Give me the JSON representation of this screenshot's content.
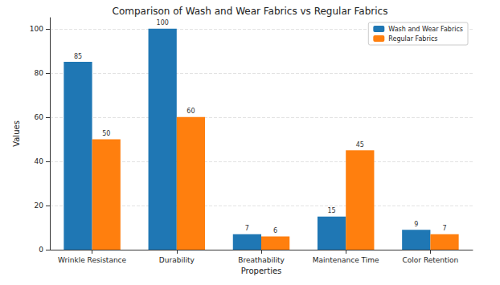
{
  "chart_data": {
    "type": "bar",
    "title": "Comparison of Wash and Wear Fabrics vs Regular Fabrics",
    "x_label": "Properties",
    "y_label": "Values",
    "categories": [
      "Wrinkle Resistance",
      "Durability",
      "Breathability",
      "Maintenance Time",
      "Color Retention"
    ],
    "series": [
      {
        "name": "Wash and Wear Fabrics",
        "color": "#1f77b4",
        "values": [
          85,
          100,
          7,
          15,
          9
        ]
      },
      {
        "name": "Regular Fabrics",
        "color": "#ff7f0e",
        "values": [
          50,
          60,
          6,
          45,
          7
        ]
      }
    ],
    "ylim": [
      0,
      105
    ],
    "yticks": [
      0,
      20,
      40,
      60,
      80,
      100
    ],
    "grid": true,
    "legend": "upper right",
    "data_labels": true
  }
}
